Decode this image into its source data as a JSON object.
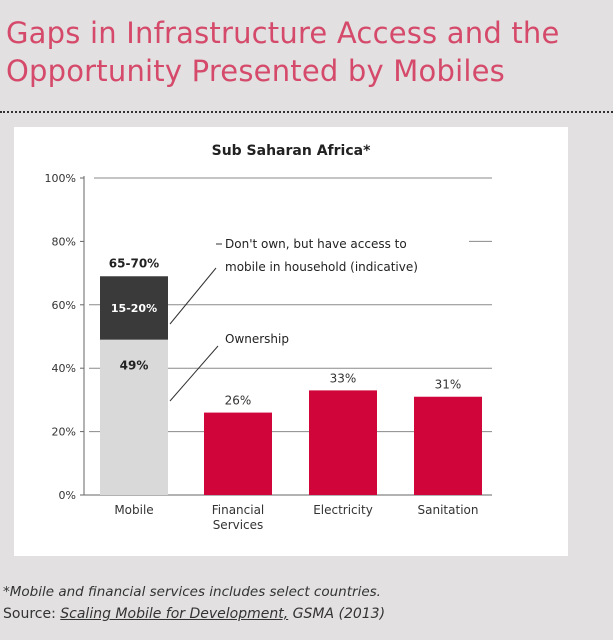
{
  "page": {
    "title_line1": "Gaps in Infrastructure Access and the",
    "title_line2": "Opportunity Presented by Mobiles",
    "footnote": "*Mobile and financial services includes select countries.",
    "source_label": "Source:",
    "source_ref": "Scaling Mobile for Development,",
    "source_pub": "GSMA (2013)"
  },
  "colors": {
    "title": "#d54a6a",
    "mobile_ownership": "#d9d9d9",
    "mobile_access": "#3a3a3a",
    "other_bars": "#d0063a"
  },
  "chart_data": {
    "type": "bar",
    "title": "Sub Saharan Africa*",
    "categories": [
      "Mobile",
      "Financial\nServices",
      "Electricity",
      "Sanitation"
    ],
    "category_labels": [
      [
        "Mobile"
      ],
      [
        "Financial",
        "Services"
      ],
      [
        "Electricity"
      ],
      [
        "Sanitation"
      ]
    ],
    "series": [
      {
        "name": "Ownership",
        "values": [
          49,
          26,
          33,
          31
        ],
        "labels": [
          "49%",
          "26%",
          "33%",
          "31%"
        ]
      },
      {
        "name": "Don't own, but have access to mobile in household (indicative)",
        "values": [
          20,
          0,
          0,
          0
        ],
        "labels": [
          "15-20%",
          "",
          "",
          ""
        ]
      }
    ],
    "total_labels": [
      "65-70%",
      "",
      "",
      ""
    ],
    "ylim": [
      0,
      100
    ],
    "yticks": [
      0,
      20,
      40,
      60,
      80,
      100
    ],
    "ytick_labels": [
      "0%",
      "20%",
      "40%",
      "60%",
      "80%",
      "100%"
    ],
    "grid": true,
    "annotations": [
      {
        "text_lines": [
          "Don't own, but have access to",
          "mobile in household (indicative)"
        ],
        "target": "access"
      },
      {
        "text_lines": [
          "Ownership"
        ],
        "target": "ownership"
      }
    ]
  }
}
